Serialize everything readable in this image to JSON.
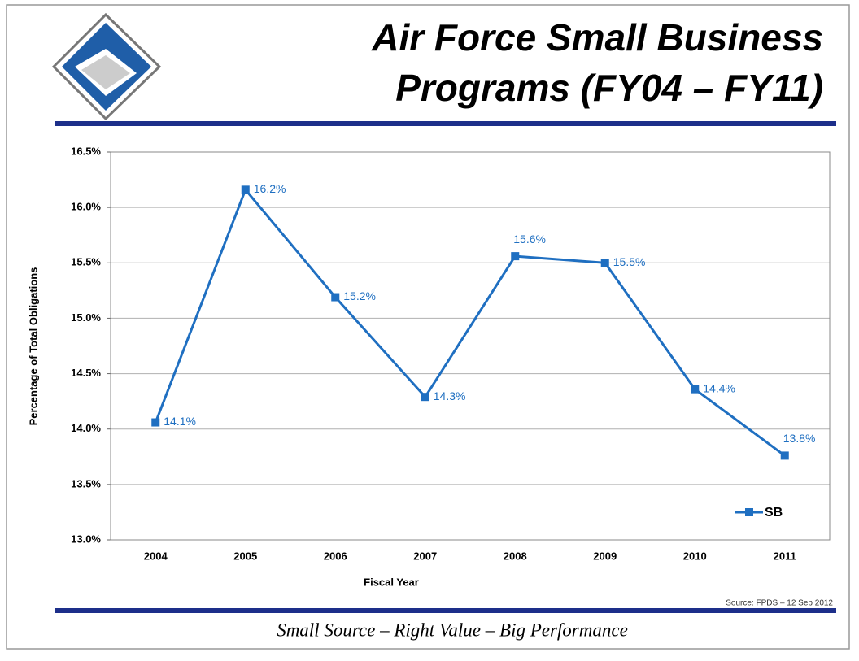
{
  "slide": {
    "title_lines": [
      "Air Force Small Business",
      "Programs (FY04 – FY11)"
    ],
    "source": "Source: FPDS – 12 Sep 2012",
    "footer": "Small Source – Right Value – Big Performance"
  },
  "chart_data": {
    "type": "line",
    "categories": [
      "2004",
      "2005",
      "2006",
      "2007",
      "2008",
      "2009",
      "2010",
      "2011"
    ],
    "series": [
      {
        "name": "SB",
        "color": "#1f6fc1",
        "values": [
          14.06,
          16.16,
          15.19,
          14.29,
          15.56,
          15.5,
          14.36,
          13.76
        ],
        "value_labels": [
          "14.1%",
          "16.2%",
          "15.2%",
          "14.3%",
          "15.6%",
          "15.5%",
          "14.4%",
          "13.8%"
        ]
      }
    ],
    "y_label": "Percentage of Total Obligations",
    "x_label": "Fiscal Year",
    "ylim": [
      13,
      16.5
    ],
    "yticks": [
      {
        "value": 13,
        "label": "13.0%"
      },
      {
        "value": 13.5,
        "label": "13.5%"
      },
      {
        "value": 14,
        "label": "14.0%"
      },
      {
        "value": 14.5,
        "label": "14.5%"
      },
      {
        "value": 15,
        "label": "15.0%"
      },
      {
        "value": 15.5,
        "label": "15.5%"
      },
      {
        "value": 16,
        "label": "16.0%"
      },
      {
        "value": 16.5,
        "label": "16.5%"
      }
    ],
    "grid": true,
    "legend": "lower right"
  }
}
